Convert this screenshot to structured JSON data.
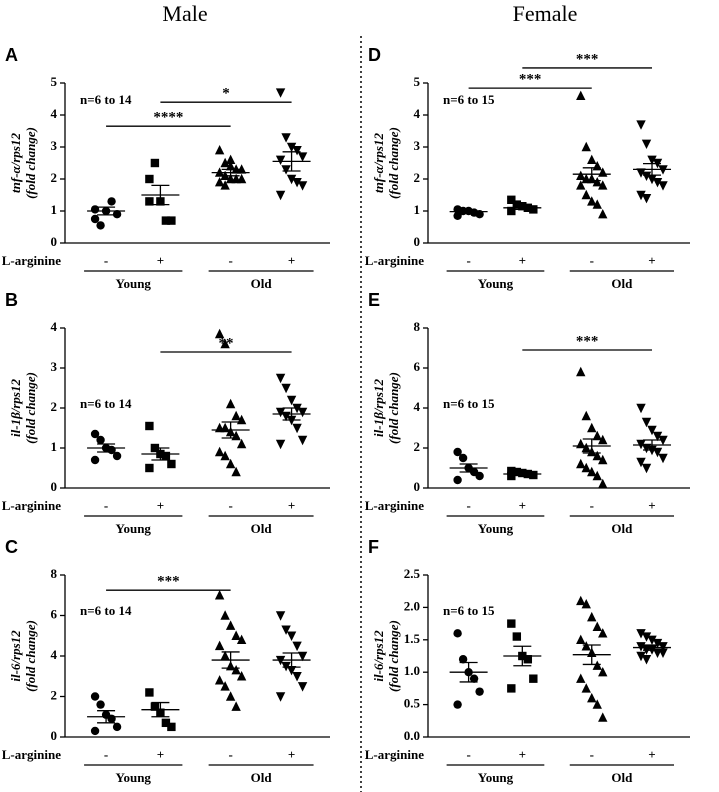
{
  "headers": [
    "Male",
    "Female"
  ],
  "chart_data": [
    {
      "type": "dotplot",
      "panel": "A",
      "ylabel": "tnf-α/rps12",
      "ylabel2": "(fold change)",
      "note": "n=6 to 14",
      "row_label": "L-arginine",
      "categories": [
        "-",
        "+",
        "-",
        "+"
      ],
      "groups": [
        "Young",
        "Old"
      ],
      "markers": [
        "circle",
        "square",
        "triangle",
        "triangle-down"
      ],
      "color": "#000000",
      "values": [
        [
          1.05,
          0.55,
          1.0,
          1.3,
          0.9,
          0.75
        ],
        [
          2.0,
          2.5,
          1.3,
          0.7,
          0.7,
          1.3
        ],
        [
          2.9,
          2.5,
          2.4,
          2.3,
          2.3,
          2.2,
          2.1,
          2.0,
          2.0,
          2.0,
          1.9,
          1.8,
          2.6
        ],
        [
          4.7,
          3.3,
          3.0,
          2.9,
          2.7,
          2.6,
          2.3,
          2.0,
          1.9,
          1.8,
          1.5
        ]
      ],
      "means": [
        1.0,
        1.5,
        2.2,
        2.55
      ],
      "sems": [
        0.12,
        0.3,
        0.1,
        0.3
      ],
      "ylim": [
        0,
        5
      ],
      "yticks": [
        0,
        1,
        2,
        3,
        4,
        5
      ],
      "brackets": [
        {
          "label": "*",
          "x": [
            1,
            3
          ],
          "y": 4.4
        },
        {
          "label": "****",
          "x": [
            0,
            2
          ],
          "y": 3.65
        }
      ]
    },
    {
      "type": "dotplot",
      "panel": "B",
      "ylabel": "il-1β/rps12",
      "ylabel2": "(fold change)",
      "note": "n=6 to 14",
      "row_label": "L-arginine",
      "categories": [
        "-",
        "+",
        "-",
        "+"
      ],
      "groups": [
        "Young",
        "Old"
      ],
      "markers": [
        "circle",
        "square",
        "triangle",
        "triangle-down"
      ],
      "color": "#000000",
      "values": [
        [
          1.35,
          1.2,
          1.0,
          0.95,
          0.8,
          0.7
        ],
        [
          1.55,
          1.0,
          0.85,
          0.8,
          0.6,
          0.5
        ],
        [
          3.85,
          3.6,
          2.1,
          1.8,
          1.7,
          1.5,
          1.5,
          1.4,
          1.3,
          1.1,
          0.9,
          0.8,
          0.6,
          0.4
        ],
        [
          2.75,
          2.5,
          2.2,
          2.0,
          1.9,
          1.9,
          1.8,
          1.7,
          1.5,
          1.2,
          1.1
        ]
      ],
      "means": [
        1.0,
        0.85,
        1.45,
        1.85
      ],
      "sems": [
        0.1,
        0.15,
        0.2,
        0.15
      ],
      "ylim": [
        0,
        4
      ],
      "yticks": [
        0,
        1,
        2,
        3,
        4
      ],
      "brackets": [
        {
          "label": "**",
          "x": [
            1,
            3
          ],
          "y": 3.4
        }
      ]
    },
    {
      "type": "dotplot",
      "panel": "C",
      "ylabel": "il-6/rps12",
      "ylabel2": "(fold change)",
      "note": "n=6 to 14",
      "row_label": "L-arginine",
      "categories": [
        "-",
        "+",
        "-",
        "+"
      ],
      "groups": [
        "Young",
        "Old"
      ],
      "markers": [
        "circle",
        "square",
        "triangle",
        "triangle-down"
      ],
      "color": "#000000",
      "values": [
        [
          2.0,
          1.6,
          1.1,
          0.9,
          0.5,
          0.3
        ],
        [
          2.2,
          1.5,
          1.2,
          0.7,
          0.5
        ],
        [
          7.0,
          6.0,
          5.5,
          5.0,
          4.8,
          4.5,
          4.0,
          3.5,
          3.3,
          3.0,
          2.8,
          2.5,
          2.0,
          1.5
        ],
        [
          6.0,
          5.3,
          5.0,
          4.5,
          4.0,
          3.8,
          3.5,
          3.3,
          3.0,
          2.5,
          2.0
        ]
      ],
      "means": [
        1.0,
        1.35,
        3.8,
        3.8
      ],
      "sems": [
        0.3,
        0.35,
        0.4,
        0.35
      ],
      "ylim": [
        0,
        8
      ],
      "yticks": [
        0,
        2,
        4,
        6,
        8
      ],
      "brackets": [
        {
          "label": "***",
          "x": [
            0,
            2
          ],
          "y": 7.25
        }
      ]
    },
    {
      "type": "dotplot",
      "panel": "D",
      "ylabel": "tnf-α/rps12",
      "ylabel2": "(fold change)",
      "note": "n=6 to 15",
      "row_label": "L-arginine",
      "categories": [
        "-",
        "+",
        "-",
        "+"
      ],
      "groups": [
        "Young",
        "Old"
      ],
      "markers": [
        "circle",
        "square",
        "triangle",
        "triangle-down"
      ],
      "color": "#000000",
      "values": [
        [
          1.05,
          1.0,
          1.0,
          0.95,
          0.9,
          0.85
        ],
        [
          1.35,
          1.2,
          1.15,
          1.1,
          1.05,
          1.0
        ],
        [
          4.6,
          3.0,
          2.6,
          2.4,
          2.2,
          2.1,
          2.0,
          2.0,
          1.9,
          1.8,
          1.8,
          1.5,
          1.3,
          1.2,
          0.9
        ],
        [
          3.7,
          3.1,
          2.6,
          2.5,
          2.3,
          2.2,
          2.1,
          2.0,
          1.9,
          1.8,
          1.5,
          1.4
        ]
      ],
      "means": [
        0.98,
        1.1,
        2.15,
        2.3
      ],
      "sems": [
        0.03,
        0.05,
        0.2,
        0.18
      ],
      "ylim": [
        0,
        5
      ],
      "yticks": [
        0,
        1,
        2,
        3,
        4,
        5
      ],
      "brackets": [
        {
          "label": "***",
          "x": [
            1,
            3
          ],
          "y": 5.47
        },
        {
          "label": "***",
          "x": [
            0,
            2
          ],
          "y": 4.84
        }
      ]
    },
    {
      "type": "dotplot",
      "panel": "E",
      "ylabel": "il-1β/rps12",
      "ylabel2": "(fold change)",
      "note": "n=6 to 15",
      "row_label": "L-arginine",
      "categories": [
        "-",
        "+",
        "-",
        "+"
      ],
      "groups": [
        "Young",
        "Old"
      ],
      "markers": [
        "circle",
        "square",
        "triangle",
        "triangle-down"
      ],
      "color": "#000000",
      "values": [
        [
          1.8,
          1.5,
          1.0,
          0.8,
          0.6,
          0.4
        ],
        [
          0.85,
          0.8,
          0.75,
          0.7,
          0.65,
          0.6
        ],
        [
          5.8,
          3.6,
          3.0,
          2.6,
          2.4,
          2.2,
          2.0,
          1.8,
          1.6,
          1.4,
          1.2,
          1.0,
          0.8,
          0.6,
          0.2
        ],
        [
          4.0,
          3.3,
          2.9,
          2.6,
          2.4,
          2.2,
          2.0,
          1.9,
          1.8,
          1.5,
          1.3,
          1.0
        ]
      ],
      "means": [
        1.0,
        0.7,
        2.1,
        2.15
      ],
      "sems": [
        0.2,
        0.05,
        0.35,
        0.25
      ],
      "ylim": [
        0,
        8
      ],
      "yticks": [
        0,
        2,
        4,
        6,
        8
      ],
      "brackets": [
        {
          "label": "***",
          "x": [
            1,
            3
          ],
          "y": 6.9
        }
      ]
    },
    {
      "type": "dotplot",
      "panel": "F",
      "ylabel": "il-6/rps12",
      "ylabel2": "(fold change)",
      "note": "n=6 to 15",
      "row_label": "L-arginine",
      "categories": [
        "-",
        "+",
        "-",
        "+"
      ],
      "groups": [
        "Young",
        "Old"
      ],
      "markers": [
        "circle",
        "square",
        "triangle",
        "triangle-down"
      ],
      "color": "#000000",
      "values": [
        [
          1.6,
          1.2,
          1.0,
          0.9,
          0.7,
          0.5
        ],
        [
          1.75,
          1.55,
          1.25,
          1.2,
          0.9,
          0.75
        ],
        [
          2.1,
          2.05,
          1.85,
          1.7,
          1.6,
          1.5,
          1.4,
          1.3,
          1.1,
          1.0,
          0.9,
          0.75,
          0.6,
          0.5,
          0.3
        ],
        [
          1.6,
          1.55,
          1.5,
          1.45,
          1.4,
          1.4,
          1.35,
          1.35,
          1.3,
          1.3,
          1.25,
          1.2
        ]
      ],
      "means": [
        1.0,
        1.25,
        1.27,
        1.38
      ],
      "sems": [
        0.15,
        0.15,
        0.15,
        0.04
      ],
      "ylim": [
        0,
        2.5
      ],
      "yticks": [
        {
          "value": 0,
          "label": "0.0"
        },
        0.5,
        {
          "value": 1,
          "label": "1.0"
        },
        1.5,
        {
          "value": 2,
          "label": "2.0"
        },
        2.5
      ],
      "brackets": []
    }
  ]
}
